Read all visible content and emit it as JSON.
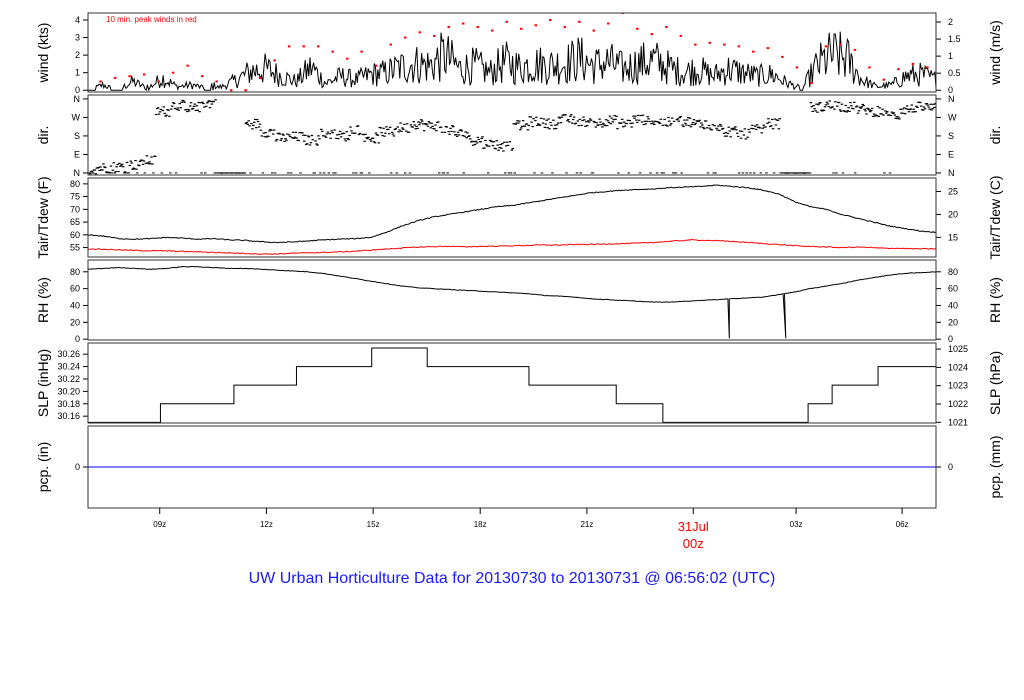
{
  "colors": {
    "series": "#000000",
    "peak": "#ff0000",
    "dewpoint": "#ff0000",
    "precip": "#0000ff",
    "footer": "#1a1aff",
    "date": "#ff0000"
  },
  "chart_data": [
    {
      "type": "line",
      "id": "wind",
      "ylabel_left": "wind (kts)",
      "ylabel_right": "wind (m/s)",
      "annotation": "10 min. peak winds in red",
      "ylim": [
        -0.1,
        4.4
      ],
      "ticks_left": [
        "0",
        "1",
        "2",
        "3",
        "4"
      ],
      "ticks_right": [
        "0",
        "0.5",
        "1",
        "1.5",
        "2"
      ],
      "series": [
        {
          "name": "wind",
          "values": [
            0,
            0.3,
            0,
            0.5,
            0.1,
            0.7,
            0.2,
            0.3,
            0.1,
            0.2,
            0.6,
            1.1,
            1.2,
            0.8,
            0.5,
            1.3,
            0.4,
            0.8,
            0.6,
            0.9,
            1.0,
            1.3,
            1.5,
            1.4,
            2.0,
            1.2,
            1.4,
            1.0,
            1.6,
            1.3,
            1.5,
            1.4,
            1.5,
            1.8,
            1.4,
            1.6,
            1.2,
            1.5,
            1.7,
            1.3,
            1.0,
            1.2,
            0.8,
            1.2,
            1.0,
            0.8,
            0.9,
            0.4,
            0.1,
            1.4,
            2.0,
            1.8,
            0.6,
            0.2,
            0.3,
            0.8,
            0.9,
            0.6
          ]
        },
        {
          "name": "10 min. peak",
          "values": [
            0.5,
            0.7,
            0.8,
            0.9,
            0.5,
            1.0,
            1.4,
            0.8,
            0.5,
            0,
            0,
            0.7,
            1.7,
            2.5,
            2.5,
            2.5,
            2.2,
            1.8,
            2.2,
            1.4,
            2.6,
            3.0,
            3.3,
            3.1,
            3.6,
            3.8,
            3.6,
            3.4,
            3.9,
            3.5,
            3.7,
            4.0,
            3.6,
            3.9,
            3.4,
            3.8,
            4.4,
            3.5,
            3.2,
            3.6,
            3.1,
            2.6,
            2.7,
            2.6,
            2.5,
            2.2,
            2.4,
            1.9,
            1.3,
            0.4,
            2.5,
            2.6,
            2.3,
            1.3,
            0.6,
            1.2,
            1.5,
            1.3
          ]
        }
      ]
    },
    {
      "type": "scatter",
      "id": "dir",
      "ylabel_left": "dir.",
      "ylabel_right": "dir.",
      "ylim": [
        -10,
        379
      ],
      "ticks_left": [
        "N",
        "E",
        "S",
        "W",
        "N"
      ],
      "ticks_right": [
        "N",
        "E",
        "S",
        "W",
        "N"
      ],
      "values": [
        20,
        25,
        30,
        40,
        60,
        300,
        330,
        320,
        340,
        0,
        0,
        240,
        200,
        170,
        175,
        160,
        190,
        180,
        210,
        170,
        200,
        220,
        240,
        230,
        210,
        190,
        160,
        140,
        130,
        230,
        250,
        240,
        260,
        250,
        245,
        255,
        240,
        260,
        250,
        245,
        250,
        240,
        230,
        200,
        190,
        210,
        240,
        0,
        0,
        320,
        330,
        320,
        310,
        300,
        280,
        310,
        320,
        315
      ]
    },
    {
      "type": "line",
      "id": "temp",
      "ylabel_left": "Tair/Tdew (F)",
      "ylabel_right": "Tair/Tdew (C)",
      "ylim": [
        51.3,
        82.3
      ],
      "ticks_left": [
        "55",
        "60",
        "65",
        "70",
        "75",
        "80"
      ],
      "ticks_right": [
        "15",
        "20",
        "25"
      ],
      "series": [
        {
          "name": "Tair",
          "values": [
            60,
            59.5,
            58.5,
            58.3,
            58.5,
            59,
            58.7,
            58.3,
            58.5,
            58,
            57.8,
            57.3,
            57,
            57.2,
            57.6,
            58,
            58.3,
            58.5,
            59,
            61,
            63.5,
            65.5,
            67,
            68,
            69,
            70,
            71,
            71.5,
            72.5,
            73.5,
            74.5,
            75.5,
            76.5,
            77,
            77.5,
            77.8,
            78,
            78.5,
            78.7,
            79,
            79.5,
            79,
            78.5,
            77.5,
            76,
            73,
            71,
            70,
            68,
            66.5,
            65,
            63.5,
            62.5,
            61.5,
            61
          ]
        },
        {
          "name": "Tdew",
          "values": [
            54.5,
            54.3,
            54,
            53.8,
            53.7,
            53.5,
            53.3,
            53,
            52.8,
            52.5,
            52.5,
            52.8,
            53,
            53.2,
            53.5,
            54,
            54.5,
            55,
            55.3,
            55.5,
            55.3,
            55.5,
            55.6,
            55.8,
            56,
            56,
            56.2,
            56.3,
            56.5,
            56.7,
            57,
            57.5,
            58,
            57.8,
            57.5,
            57,
            56.5,
            56,
            55.5,
            55.3,
            55,
            55.2,
            54.8,
            54.7,
            54.5,
            54.5
          ]
        }
      ]
    },
    {
      "type": "line",
      "id": "rh",
      "ylabel_left": "RH (%)",
      "ylabel_right": "RH (%)",
      "ylim": [
        -1,
        94
      ],
      "ticks_left": [
        "0",
        "20",
        "40",
        "60",
        "80"
      ],
      "ticks_right": [
        "0",
        "20",
        "40",
        "60",
        "80"
      ],
      "series": [
        {
          "name": "RH",
          "values": [
            83,
            84,
            85,
            84,
            83,
            84,
            86,
            86,
            85,
            84,
            84,
            83,
            82,
            81,
            80,
            78,
            75,
            72,
            69,
            66,
            63,
            61,
            60,
            59,
            58,
            57,
            56,
            55,
            54,
            52,
            51,
            50,
            48,
            47,
            46,
            45,
            44,
            44,
            45,
            46,
            47,
            48,
            49,
            50,
            53,
            56,
            60,
            63,
            66,
            70,
            73,
            76,
            78,
            79,
            80
          ]
        },
        {
          "name": "RH dips",
          "values": [
            {
              "x": 18.15,
              "y": 1
            },
            {
              "x": 19.75,
              "y": 1
            }
          ]
        }
      ]
    },
    {
      "type": "line",
      "id": "slp",
      "ylabel_left": "SLP (inHg)",
      "ylabel_right": "SLP (hPa)",
      "ylim": [
        30.149,
        30.278
      ],
      "ticks_left": [
        "30.16",
        "30.18",
        "30.20",
        "30.22",
        "30.24",
        "30.26"
      ],
      "ticks_right": [
        "1021",
        "1022",
        "1023",
        "1024",
        "1025"
      ],
      "steps": [
        {
          "x": 0,
          "y": 30.15
        },
        {
          "x": 2.05,
          "y": 30.18
        },
        {
          "x": 4.13,
          "y": 30.21
        },
        {
          "x": 5.9,
          "y": 30.24
        },
        {
          "x": 8.03,
          "y": 30.27
        },
        {
          "x": 9.6,
          "y": 30.24
        },
        {
          "x": 12.48,
          "y": 30.21
        },
        {
          "x": 14.95,
          "y": 30.18
        },
        {
          "x": 16.27,
          "y": 30.15
        },
        {
          "x": 20.38,
          "y": 30.18
        },
        {
          "x": 21.06,
          "y": 30.21
        },
        {
          "x": 22.36,
          "y": 30.24
        }
      ]
    },
    {
      "type": "line",
      "id": "pcp",
      "ylabel_left": "pcp. (in)",
      "ylabel_right": "pcp. (mm)",
      "ylim": [
        -1,
        1
      ],
      "ticks_left": [
        "0"
      ],
      "ticks_right": [
        "0"
      ],
      "series": [
        {
          "name": "precip",
          "values": [
            0,
            0
          ]
        }
      ]
    }
  ],
  "x_axis": {
    "range_hours": [
      0,
      24
    ],
    "ticks": [
      {
        "label": "09z",
        "hour": 2.03
      },
      {
        "label": "12z",
        "hour": 5.05
      },
      {
        "label": "15z",
        "hour": 8.07
      },
      {
        "label": "18z",
        "hour": 11.1
      },
      {
        "label": "21z",
        "hour": 14.12
      },
      {
        "label": "00z",
        "hour": 17.13,
        "date": "31Jul"
      },
      {
        "label": "03z",
        "hour": 20.04
      },
      {
        "label": "06z",
        "hour": 23.04
      }
    ]
  },
  "footer": "UW Urban Horticulture Data for 20130730  to  20130731 @ 06:56:02  (UTC)"
}
